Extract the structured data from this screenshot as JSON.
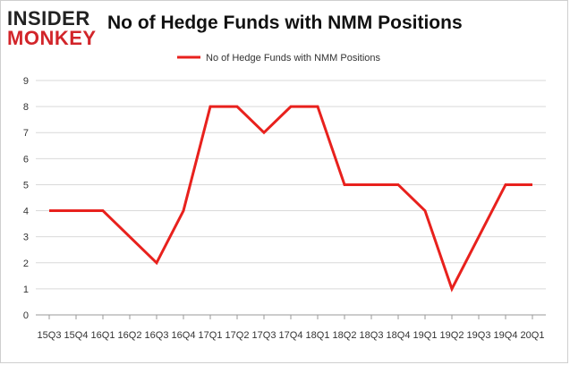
{
  "header": {
    "logo_top": "INSIDER",
    "logo_bottom": "MONKEY",
    "title": "No of Hedge Funds with NMM Positions"
  },
  "colors": {
    "series": "#e8211d",
    "grid": "#d9d9d9",
    "axis": "#999999",
    "logo_dark": "#222222",
    "logo_red": "#d2252a"
  },
  "chart_data": {
    "type": "line",
    "title": "No of Hedge Funds with NMM Positions",
    "xlabel": "",
    "ylabel": "",
    "categories": [
      "15Q3",
      "15Q4",
      "16Q1",
      "16Q2",
      "16Q3",
      "16Q4",
      "17Q1",
      "17Q2",
      "17Q3",
      "17Q4",
      "18Q1",
      "18Q2",
      "18Q3",
      "18Q4",
      "19Q1",
      "19Q2",
      "19Q3",
      "19Q4",
      "20Q1"
    ],
    "series": [
      {
        "name": "No of Hedge Funds with NMM  Positions",
        "values": [
          4,
          4,
          4,
          3,
          2,
          4,
          8,
          8,
          7,
          8,
          8,
          5,
          5,
          5,
          4,
          1,
          3,
          5,
          5
        ]
      }
    ],
    "ylim": [
      0,
      9
    ],
    "yticks": [
      0,
      1,
      2,
      3,
      4,
      5,
      6,
      7,
      8,
      9
    ],
    "grid": true,
    "legend": "top-center"
  }
}
